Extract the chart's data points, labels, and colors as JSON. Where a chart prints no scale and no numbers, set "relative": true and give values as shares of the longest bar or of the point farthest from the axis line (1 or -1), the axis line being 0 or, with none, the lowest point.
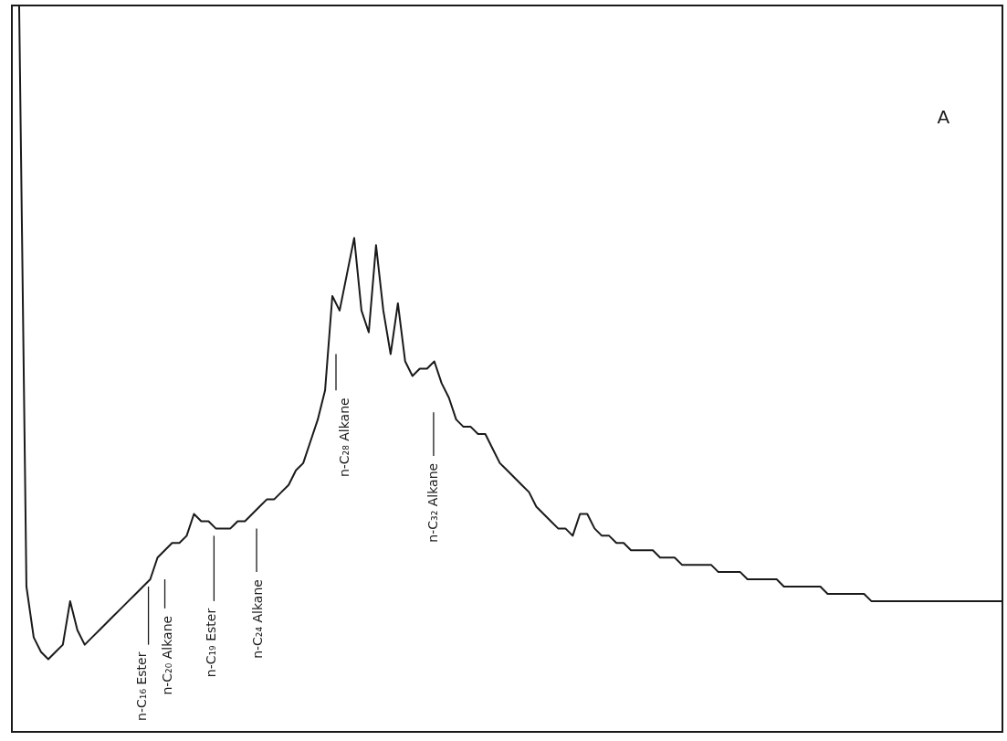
{
  "chart_data": {
    "type": "line",
    "relative": true,
    "color": "#1a1a1a",
    "line_style": "solid",
    "categories": [
      null,
      null,
      null,
      null,
      null,
      null,
      null,
      null,
      null,
      null,
      null,
      null,
      null,
      null,
      null,
      null,
      null,
      null,
      null,
      null,
      null,
      null,
      null,
      null,
      null,
      null,
      null,
      null,
      null,
      null,
      null,
      null,
      null,
      null,
      null,
      null,
      null,
      null,
      null,
      null,
      null,
      null,
      null,
      null,
      null,
      null,
      null,
      null,
      null,
      null,
      null,
      null,
      null,
      null,
      null,
      null,
      null,
      null,
      null,
      null,
      null,
      null,
      null,
      null,
      null,
      null,
      null,
      null,
      null,
      null,
      null,
      null,
      null,
      null,
      null,
      null,
      null,
      null,
      null,
      null,
      null,
      null,
      null,
      null,
      null,
      null,
      null,
      null,
      null,
      null,
      null,
      null,
      null,
      null,
      null,
      null,
      null,
      null,
      null,
      null,
      null,
      null,
      null,
      null,
      null,
      null,
      null,
      null,
      null,
      null,
      null,
      null,
      null,
      null,
      null,
      null,
      null,
      null,
      null,
      null,
      null,
      null,
      null,
      null,
      null,
      null,
      null,
      null,
      null,
      null,
      null,
      null,
      null,
      null,
      null,
      null,
      null
    ],
    "values": [
      1.0,
      1.0,
      0.2,
      0.13,
      0.11,
      0.1,
      0.11,
      0.12,
      0.18,
      0.14,
      0.12,
      0.13,
      0.14,
      0.15,
      0.16,
      0.17,
      0.18,
      0.19,
      0.2,
      0.21,
      0.24,
      0.25,
      0.26,
      0.26,
      0.27,
      0.3,
      0.29,
      0.29,
      0.28,
      0.28,
      0.28,
      0.29,
      0.29,
      0.3,
      0.31,
      0.32,
      0.32,
      0.33,
      0.34,
      0.36,
      0.37,
      0.4,
      0.43,
      0.47,
      0.6,
      0.58,
      0.63,
      0.68,
      0.58,
      0.55,
      0.67,
      0.58,
      0.52,
      0.59,
      0.51,
      0.49,
      0.5,
      0.5,
      0.51,
      0.48,
      0.46,
      0.43,
      0.42,
      0.42,
      0.41,
      0.41,
      0.39,
      0.37,
      0.36,
      0.35,
      0.34,
      0.33,
      0.31,
      0.3,
      0.29,
      0.28,
      0.28,
      0.27,
      0.3,
      0.3,
      0.28,
      0.27,
      0.27,
      0.26,
      0.26,
      0.25,
      0.25,
      0.25,
      0.25,
      0.24,
      0.24,
      0.24,
      0.23,
      0.23,
      0.23,
      0.23,
      0.23,
      0.22,
      0.22,
      0.22,
      0.22,
      0.21,
      0.21,
      0.21,
      0.21,
      0.21,
      0.2,
      0.2,
      0.2,
      0.2,
      0.2,
      0.2,
      0.19,
      0.19,
      0.19,
      0.19,
      0.19,
      0.19,
      0.18,
      0.18,
      0.18,
      0.18,
      0.18,
      0.18,
      0.18,
      0.18,
      0.18,
      0.18,
      0.18,
      0.18,
      0.18,
      0.18,
      0.18,
      0.18,
      0.18,
      0.18,
      0.18
    ],
    "annotations": [
      "n-C₁₆ Ester",
      "n-C₂₀ Alkane",
      "n-C₁₉ Ester",
      "n-C₂₄ Alkane",
      "n-C₂₈ Alkane",
      "n-C₃₂ Alkane",
      "A"
    ]
  }
}
